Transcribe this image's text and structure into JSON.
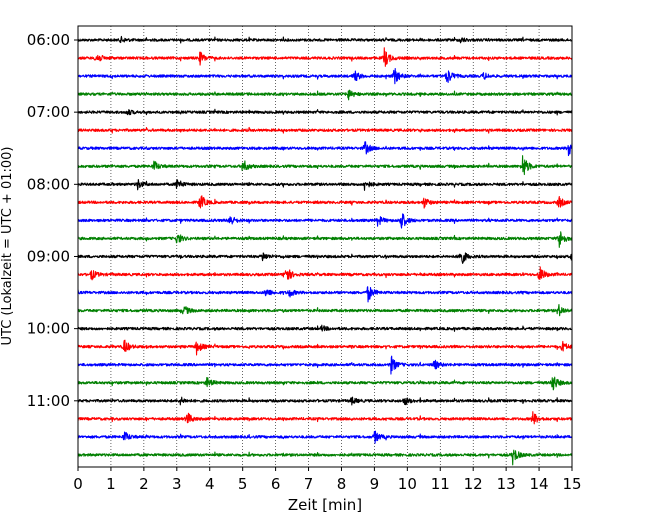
{
  "chart_data": {
    "type": "line",
    "title": "",
    "xlabel": "Zeit  [min]",
    "ylabel": "UTC (Lokalzeit = UTC + 01:00)",
    "xlim": [
      0,
      15
    ],
    "x_ticks": [
      0,
      1,
      2,
      3,
      4,
      5,
      6,
      7,
      8,
      9,
      10,
      11,
      12,
      13,
      14,
      15
    ],
    "y_tick_labels": [
      "06:00",
      "07:00",
      "08:00",
      "09:00",
      "10:00",
      "11:00"
    ],
    "grid_x": true,
    "trace_minutes": 15,
    "colors": [
      "#000000",
      "#ff0000",
      "#0000ff",
      "#008000"
    ],
    "traces": [
      {
        "start": "06:00",
        "color": "#000000",
        "events": [
          {
            "t": 1.3,
            "amp": 0.15
          },
          {
            "t": 11.6,
            "amp": 0.15
          }
        ]
      },
      {
        "start": "06:15",
        "color": "#ff0000",
        "events": [
          {
            "t": 0.55,
            "amp": 0.35
          },
          {
            "t": 3.7,
            "amp": 0.35
          },
          {
            "t": 9.3,
            "amp": 0.55
          }
        ]
      },
      {
        "start": "06:30",
        "color": "#0000ff",
        "events": [
          {
            "t": 8.4,
            "amp": 0.3
          },
          {
            "t": 9.6,
            "amp": 0.5
          },
          {
            "t": 11.2,
            "amp": 0.5
          },
          {
            "t": 12.3,
            "amp": 0.2
          }
        ]
      },
      {
        "start": "06:45",
        "color": "#008000",
        "events": [
          {
            "t": 8.2,
            "amp": 0.3
          }
        ]
      },
      {
        "start": "07:00",
        "color": "#000000",
        "events": [
          {
            "t": 1.5,
            "amp": 0.15
          }
        ]
      },
      {
        "start": "07:15",
        "color": "#ff0000",
        "events": []
      },
      {
        "start": "07:30",
        "color": "#0000ff",
        "events": [
          {
            "t": 8.7,
            "amp": 0.4
          },
          {
            "t": 14.9,
            "amp": 0.7
          }
        ]
      },
      {
        "start": "07:45",
        "color": "#008000",
        "events": [
          {
            "t": 2.3,
            "amp": 0.3
          },
          {
            "t": 5.0,
            "amp": 0.4
          },
          {
            "t": 13.5,
            "amp": 0.7
          }
        ]
      },
      {
        "start": "08:00",
        "color": "#000000",
        "events": [
          {
            "t": 1.8,
            "amp": 0.3
          },
          {
            "t": 3.0,
            "amp": 0.3
          },
          {
            "t": 8.7,
            "amp": 0.3
          }
        ]
      },
      {
        "start": "08:15",
        "color": "#ff0000",
        "events": [
          {
            "t": 3.7,
            "amp": 0.5
          },
          {
            "t": 10.5,
            "amp": 0.3
          },
          {
            "t": 14.6,
            "amp": 0.3
          }
        ]
      },
      {
        "start": "08:30",
        "color": "#0000ff",
        "events": [
          {
            "t": 4.6,
            "amp": 0.35
          },
          {
            "t": 9.1,
            "amp": 0.3
          },
          {
            "t": 9.8,
            "amp": 0.6
          }
        ]
      },
      {
        "start": "08:45",
        "color": "#008000",
        "events": [
          {
            "t": 3.0,
            "amp": 0.3
          },
          {
            "t": 14.6,
            "amp": 0.6
          }
        ]
      },
      {
        "start": "09:00",
        "color": "#000000",
        "events": [
          {
            "t": 5.6,
            "amp": 0.25
          },
          {
            "t": 11.6,
            "amp": 0.6
          },
          {
            "t": 15.0,
            "amp": 0.5
          }
        ]
      },
      {
        "start": "09:15",
        "color": "#ff0000",
        "events": [
          {
            "t": 0.4,
            "amp": 0.3
          },
          {
            "t": 6.3,
            "amp": 0.55
          },
          {
            "t": 14.0,
            "amp": 0.5
          }
        ]
      },
      {
        "start": "09:30",
        "color": "#0000ff",
        "events": [
          {
            "t": 5.7,
            "amp": 0.25
          },
          {
            "t": 6.4,
            "amp": 0.25
          },
          {
            "t": 8.8,
            "amp": 0.5
          }
        ]
      },
      {
        "start": "09:45",
        "color": "#008000",
        "events": [
          {
            "t": 3.2,
            "amp": 0.3
          },
          {
            "t": 14.6,
            "amp": 0.3
          }
        ]
      },
      {
        "start": "10:00",
        "color": "#000000",
        "events": [
          {
            "t": 7.4,
            "amp": 0.15
          }
        ]
      },
      {
        "start": "10:15",
        "color": "#ff0000",
        "events": [
          {
            "t": 1.4,
            "amp": 0.4
          },
          {
            "t": 3.6,
            "amp": 0.4
          },
          {
            "t": 14.7,
            "amp": 0.3
          }
        ]
      },
      {
        "start": "10:30",
        "color": "#0000ff",
        "events": [
          {
            "t": 9.5,
            "amp": 0.5
          },
          {
            "t": 10.8,
            "amp": 0.3
          }
        ]
      },
      {
        "start": "10:45",
        "color": "#008000",
        "events": [
          {
            "t": 3.9,
            "amp": 0.3
          },
          {
            "t": 14.4,
            "amp": 0.55
          }
        ]
      },
      {
        "start": "11:00",
        "color": "#000000",
        "events": [
          {
            "t": 3.1,
            "amp": 0.2
          },
          {
            "t": 8.3,
            "amp": 0.2
          },
          {
            "t": 9.9,
            "amp": 0.25
          }
        ]
      },
      {
        "start": "11:15",
        "color": "#ff0000",
        "events": [
          {
            "t": 3.3,
            "amp": 0.4
          },
          {
            "t": 13.8,
            "amp": 0.4
          }
        ]
      },
      {
        "start": "11:30",
        "color": "#0000ff",
        "events": [
          {
            "t": 1.4,
            "amp": 0.3
          },
          {
            "t": 9.0,
            "amp": 0.35
          }
        ]
      },
      {
        "start": "11:45",
        "color": "#008000",
        "events": [
          {
            "t": 13.2,
            "amp": 0.5
          }
        ]
      }
    ]
  }
}
